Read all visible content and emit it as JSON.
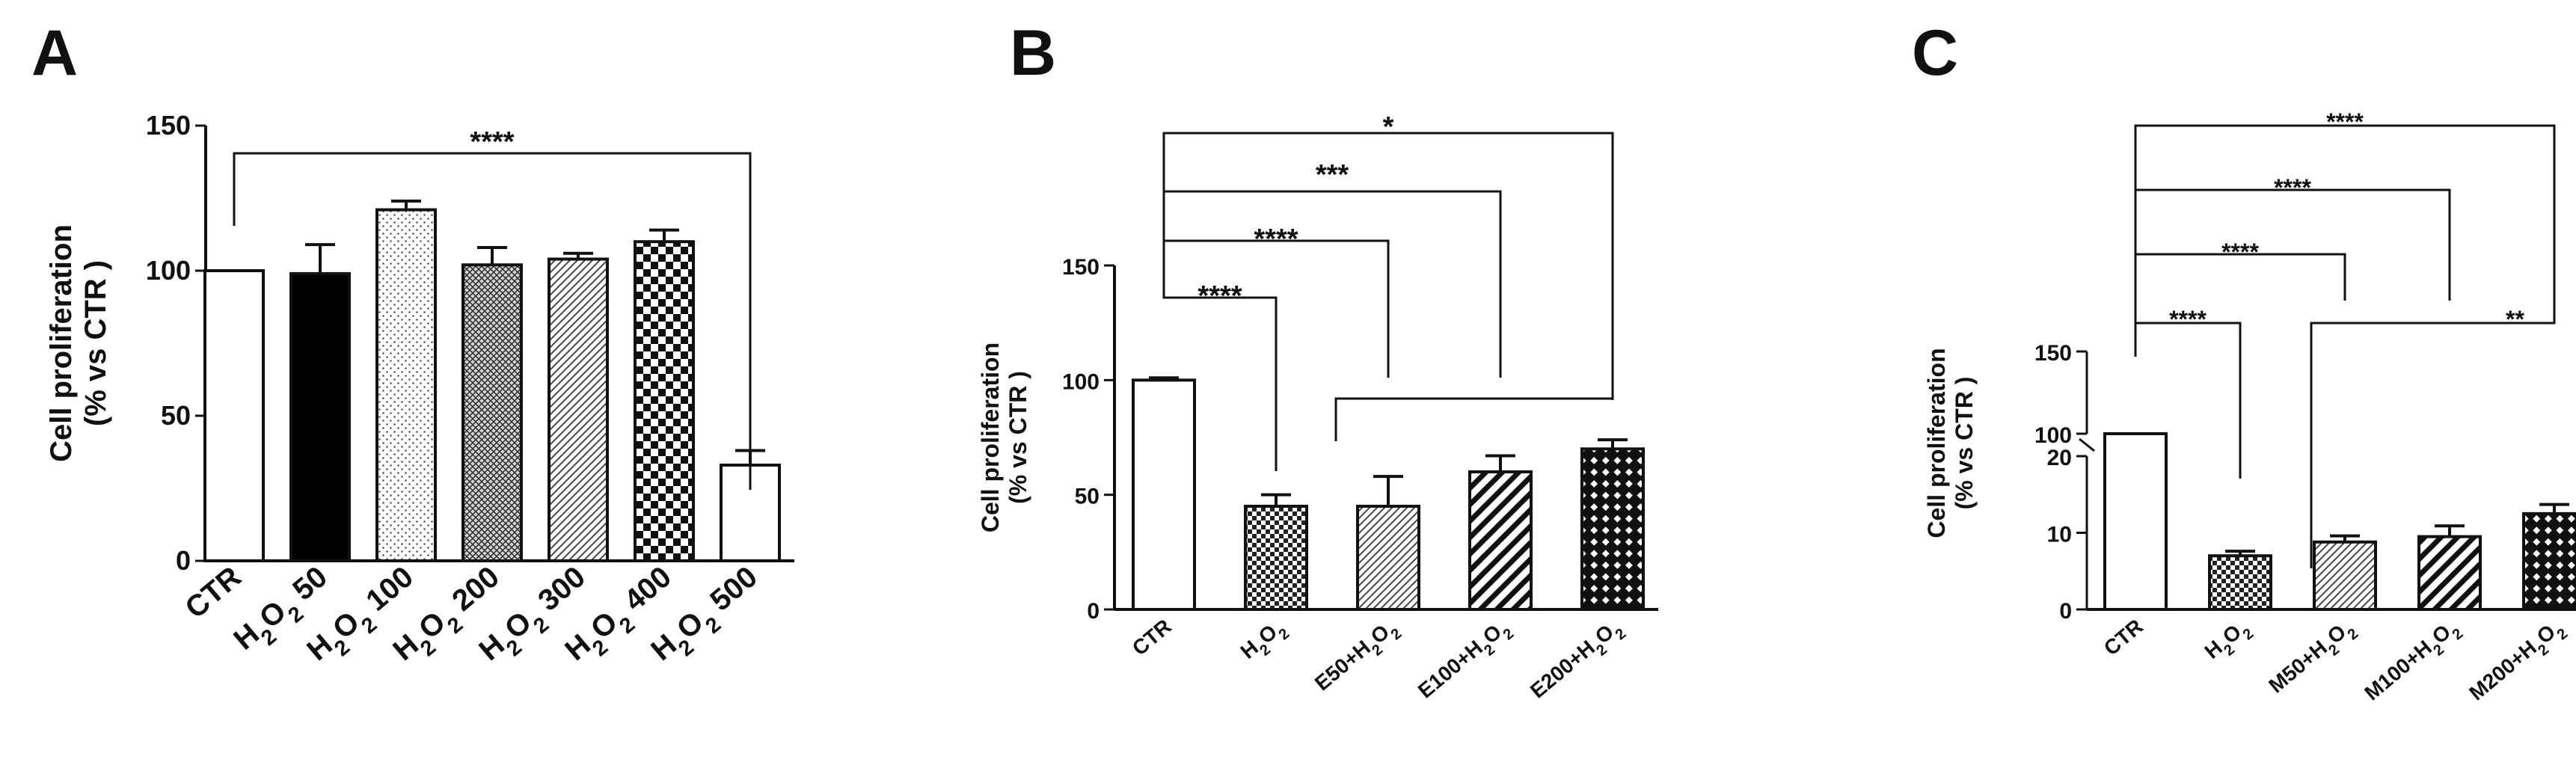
{
  "chart_data": [
    {
      "type": "bar",
      "panel": "A",
      "ylabel": "Cell proliferation\n(% vs CTR )",
      "ylim": [
        0,
        150
      ],
      "yticks": [
        0,
        50,
        100,
        150
      ],
      "categories": [
        "CTR",
        "H2O2 50",
        "H2O2 100",
        "H2O2 200",
        "H2O2 300",
        "H2O2 400",
        "H2O2 500"
      ],
      "values": [
        100,
        99,
        121,
        102,
        104,
        110,
        33
      ],
      "errors": [
        0,
        10,
        3,
        6,
        2,
        4,
        5
      ],
      "fills": [
        "white",
        "solid-black",
        "dots",
        "crosshatch-fine",
        "diagonal-fine",
        "checker",
        "white"
      ],
      "significance": [
        {
          "from": "CTR",
          "to": "H2O2 500",
          "label": "****"
        }
      ]
    },
    {
      "type": "bar",
      "panel": "B",
      "ylabel": "Cell proliferation\n(% vs CTR )",
      "ylim": [
        0,
        150
      ],
      "yticks": [
        0,
        50,
        100,
        150
      ],
      "categories": [
        "CTR",
        "H2O2",
        "E50+H2O2",
        "E100+H2O2",
        "E200+H2O2"
      ],
      "values": [
        100,
        45,
        45,
        60,
        70
      ],
      "errors": [
        1,
        5,
        13,
        7,
        4
      ],
      "fills": [
        "white",
        "checker-small",
        "diagonal-fine",
        "diagonal-bold",
        "checker-bold"
      ],
      "significance": [
        {
          "from": "CTR",
          "to": "H2O2",
          "label": "****"
        },
        {
          "from": "CTR",
          "to": "E50+H2O2",
          "label": "****"
        },
        {
          "from": "CTR",
          "to": "E100+H2O2",
          "label": "***"
        },
        {
          "from": "CTR",
          "to": "E200+H2O2",
          "label": "*"
        },
        {
          "from": "H2O2",
          "to": "E200+H2O2",
          "label": ""
        }
      ]
    },
    {
      "type": "bar",
      "panel": "C",
      "ylabel": "Cell proliferation\n(% vs CTR )",
      "ylim": [
        0,
        150
      ],
      "axis_break": [
        20,
        100
      ],
      "yticks": [
        0,
        10,
        20,
        100,
        150
      ],
      "categories": [
        "CTR",
        "H2O2",
        "M50+H2O2",
        "M100+H2O2",
        "M200+H2O2"
      ],
      "values": [
        100,
        7,
        8.8,
        9.5,
        12.5
      ],
      "errors": [
        0,
        0.6,
        0.8,
        1.4,
        1.2
      ],
      "fills": [
        "white",
        "checker-small",
        "diagonal-fine",
        "diagonal-bold",
        "checker-bold"
      ],
      "significance": [
        {
          "from": "CTR",
          "to": "H2O2",
          "label": "****"
        },
        {
          "from": "CTR",
          "to": "M50+H2O2",
          "label": "****"
        },
        {
          "from": "CTR",
          "to": "M100+H2O2",
          "label": "****"
        },
        {
          "from": "CTR",
          "to": "M200+H2O2",
          "label": "****"
        },
        {
          "from": "H2O2",
          "to": "M200+H2O2",
          "label": "**"
        }
      ]
    }
  ]
}
